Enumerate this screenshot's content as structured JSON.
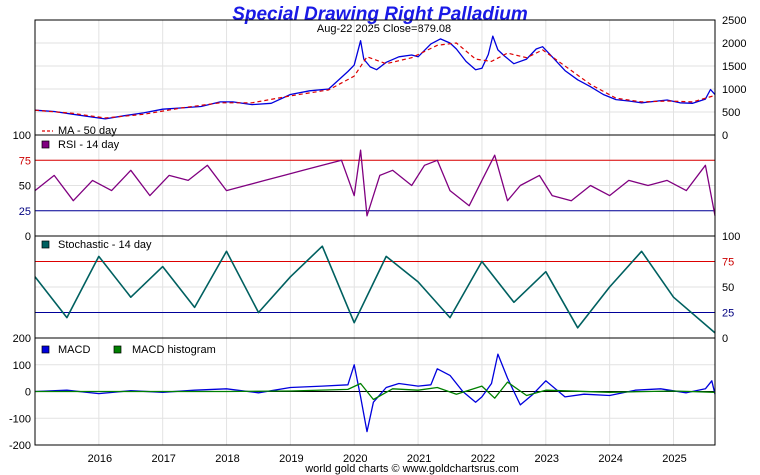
{
  "chart_data": {
    "type": "line",
    "title": "Special Drawing Right Palladium",
    "subtitle": "Aug-22  2025   Close=879.08",
    "footer": "world gold charts © www.goldchartsrus.com",
    "x_labels": [
      "2016",
      "2017",
      "2018",
      "2019",
      "2020",
      "2021",
      "2022",
      "2023",
      "2024",
      "2025"
    ],
    "x_range": [
      2015.0,
      2025.65
    ],
    "panels": {
      "price": {
        "ylim": [
          0,
          2500
        ],
        "yticks": [
          "0",
          "500",
          "1000",
          "1500",
          "2000",
          "2500"
        ],
        "legend": "MA - 50 day",
        "series": [
          {
            "name": "Price",
            "color": "#0000dd",
            "x": [
              2015.0,
              2015.3,
              2015.6,
              2015.9,
              2016.1,
              2016.4,
              2016.7,
              2017.0,
              2017.3,
              2017.6,
              2017.9,
              2018.1,
              2018.4,
              2018.7,
              2019.0,
              2019.3,
              2019.6,
              2019.9,
              2020.0,
              2020.1,
              2020.15,
              2020.25,
              2020.35,
              2020.5,
              2020.7,
              2020.9,
              2021.0,
              2021.2,
              2021.35,
              2021.5,
              2021.6,
              2021.75,
              2021.9,
              2022.0,
              2022.1,
              2022.17,
              2022.25,
              2022.35,
              2022.5,
              2022.7,
              2022.85,
              2022.95,
              2023.1,
              2023.3,
              2023.5,
              2023.7,
              2023.9,
              2024.1,
              2024.3,
              2024.5,
              2024.7,
              2024.9,
              2025.1,
              2025.3,
              2025.5,
              2025.58,
              2025.65
            ],
            "values": [
              540,
              510,
              450,
              390,
              350,
              420,
              480,
              560,
              590,
              620,
              720,
              720,
              660,
              690,
              880,
              960,
              1000,
              1380,
              1520,
              2050,
              1650,
              1480,
              1420,
              1580,
              1700,
              1740,
              1700,
              1980,
              2090,
              2000,
              1870,
              1600,
              1420,
              1450,
              1750,
              2150,
              1850,
              1720,
              1550,
              1650,
              1870,
              1920,
              1700,
              1400,
              1200,
              1050,
              880,
              770,
              740,
              700,
              730,
              760,
              700,
              690,
              780,
              990,
              879.08
            ]
          },
          {
            "name": "MA - 50 day",
            "color": "#dd0000",
            "x": [
              2015.0,
              2015.6,
              2016.1,
              2016.7,
              2017.3,
              2017.9,
              2018.4,
              2019.0,
              2019.6,
              2020.0,
              2020.2,
              2020.5,
              2020.9,
              2021.3,
              2021.6,
              2021.9,
              2022.15,
              2022.4,
              2022.7,
              2022.95,
              2023.3,
              2023.7,
              2024.1,
              2024.5,
              2024.9,
              2025.3,
              2025.65
            ],
            "values": [
              540,
              470,
              370,
              450,
              590,
              700,
              700,
              850,
              980,
              1280,
              1700,
              1550,
              1680,
              1950,
              2000,
              1650,
              1600,
              1780,
              1680,
              1850,
              1500,
              1100,
              800,
              720,
              740,
              720,
              860
            ]
          }
        ]
      },
      "rsi": {
        "ylim": [
          0,
          100
        ],
        "yticks": [
          "0",
          "25",
          "50",
          "75",
          "100"
        ],
        "levels": [
          25,
          75
        ],
        "legend": "RSI - 14 day",
        "series": [
          {
            "name": "RSI - 14 day",
            "color": "#800080",
            "x": [
              2015.0,
              2015.3,
              2015.6,
              2015.9,
              2016.2,
              2016.5,
              2016.8,
              2017.1,
              2017.4,
              2017.7,
              2018.0,
              2018.3,
              2018.6,
              2018.9,
              2019.2,
              2019.5,
              2019.8,
              2020.0,
              2020.1,
              2020.2,
              2020.4,
              2020.6,
              2020.9,
              2021.1,
              2021.3,
              2021.5,
              2021.8,
              2022.0,
              2022.2,
              2022.4,
              2022.6,
              2022.9,
              2023.1,
              2023.4,
              2023.7,
              2024.0,
              2024.3,
              2024.6,
              2024.9,
              2025.2,
              2025.5,
              2025.65
            ],
            "values": [
              45,
              60,
              35,
              55,
              45,
              65,
              40,
              60,
              55,
              70,
              45,
              50,
              55,
              60,
              65,
              70,
              75,
              40,
              85,
              20,
              60,
              65,
              50,
              70,
              75,
              45,
              30,
              55,
              80,
              35,
              50,
              60,
              40,
              35,
              50,
              40,
              55,
              50,
              55,
              45,
              70,
              20
            ]
          }
        ]
      },
      "stochastic": {
        "ylim": [
          0,
          100
        ],
        "yticks": [
          "0",
          "25",
          "50",
          "75",
          "100"
        ],
        "levels": [
          25,
          75
        ],
        "legend": "Stochastic - 14 day",
        "series": [
          {
            "name": "Stochastic - 14 day",
            "color": "#006060",
            "x": [
              2015.0,
              2015.5,
              2016.0,
              2016.5,
              2017.0,
              2017.5,
              2018.0,
              2018.5,
              2019.0,
              2019.5,
              2020.0,
              2020.5,
              2021.0,
              2021.5,
              2022.0,
              2022.5,
              2023.0,
              2023.5,
              2024.0,
              2024.5,
              2025.0,
              2025.65
            ],
            "values": [
              60,
              20,
              80,
              40,
              70,
              30,
              85,
              25,
              60,
              90,
              15,
              80,
              55,
              20,
              75,
              35,
              65,
              10,
              50,
              85,
              40,
              5
            ]
          }
        ]
      },
      "macd": {
        "ylim": [
          -200,
          200
        ],
        "yticks": [
          "-200",
          "-100",
          "0",
          "100",
          "200"
        ],
        "legend": [
          "MACD",
          "MACD histogram"
        ],
        "series": [
          {
            "name": "MACD",
            "color": "#0000dd",
            "x": [
              2015.0,
              2015.5,
              2016.0,
              2016.5,
              2017.0,
              2017.5,
              2018.0,
              2018.5,
              2019.0,
              2019.5,
              2019.9,
              2020.0,
              2020.1,
              2020.2,
              2020.3,
              2020.5,
              2020.7,
              2021.0,
              2021.2,
              2021.3,
              2021.5,
              2021.7,
              2021.9,
              2022.0,
              2022.15,
              2022.25,
              2022.4,
              2022.6,
              2022.8,
              2023.0,
              2023.3,
              2023.6,
              2024.0,
              2024.4,
              2024.8,
              2025.2,
              2025.5,
              2025.6,
              2025.65
            ],
            "values": [
              0,
              5,
              -8,
              3,
              -3,
              5,
              10,
              -5,
              15,
              20,
              25,
              100,
              -20,
              -150,
              -40,
              15,
              30,
              20,
              25,
              85,
              60,
              0,
              -40,
              -20,
              30,
              140,
              50,
              -50,
              -10,
              40,
              -20,
              -10,
              -15,
              5,
              10,
              -5,
              10,
              40,
              -10
            ]
          },
          {
            "name": "MACD histogram",
            "color": "#008000",
            "x": [
              2015.0,
              2016.0,
              2017.0,
              2018.0,
              2019.0,
              2019.9,
              2020.1,
              2020.3,
              2020.6,
              2021.0,
              2021.3,
              2021.6,
              2022.0,
              2022.2,
              2022.4,
              2022.7,
              2023.0,
              2024.0,
              2025.0,
              2025.65
            ],
            "values": [
              0,
              0,
              0,
              0,
              2,
              8,
              30,
              -30,
              10,
              5,
              15,
              -10,
              20,
              -25,
              35,
              -15,
              5,
              -3,
              2,
              -3
            ]
          }
        ]
      }
    }
  }
}
